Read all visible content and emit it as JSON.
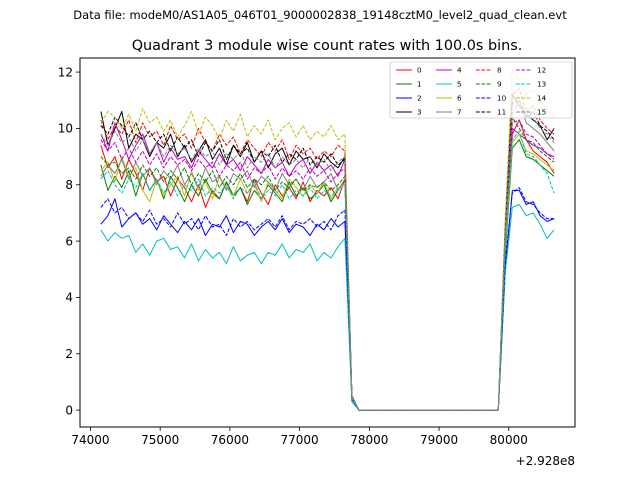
{
  "chart_data": {
    "type": "line",
    "suptitle": "Data file: modeM0/AS1A05_046T01_9000002838_19148cztM0_level2_quad_clean.evt",
    "title": "Quadrant 3 module wise count rates with 100.0s bins.",
    "xlabel": "",
    "ylabel": "",
    "x_offset_label": "+2.928e8",
    "xlim": [
      73850,
      80950
    ],
    "ylim": [
      -0.6,
      12.5
    ],
    "x_ticks": [
      74000,
      75000,
      76000,
      77000,
      78000,
      79000,
      80000
    ],
    "x_tick_labels": [
      "74000",
      "75000",
      "76000",
      "77000",
      "78000",
      "79000",
      "80000"
    ],
    "y_ticks": [
      0,
      2,
      4,
      6,
      8,
      10,
      12
    ],
    "y_tick_labels": [
      "0",
      "2",
      "4",
      "6",
      "8",
      "10",
      "12"
    ],
    "x": [
      74150,
      74250,
      74350,
      74450,
      74550,
      74650,
      74750,
      74850,
      74950,
      75050,
      75150,
      75250,
      75350,
      75450,
      75550,
      75650,
      75750,
      75850,
      75950,
      76050,
      76150,
      76250,
      76350,
      76450,
      76550,
      76650,
      76750,
      76850,
      76950,
      77050,
      77150,
      77250,
      77350,
      77450,
      77550,
      77650,
      77750,
      77850,
      77950,
      78050,
      78150,
      78250,
      78350,
      78450,
      78550,
      78650,
      78750,
      78850,
      78950,
      79050,
      79150,
      79250,
      79350,
      79450,
      79550,
      79650,
      79750,
      79850,
      79950,
      80050,
      80150,
      80250,
      80350,
      80450,
      80550,
      80650
    ],
    "legend": {
      "location": "upper right",
      "columns": 4
    },
    "series": [
      {
        "name": "0",
        "color": "#ff0000",
        "style": "solid",
        "values": [
          9.4,
          8.6,
          9.0,
          8.2,
          8.9,
          8.4,
          7.8,
          8.6,
          8.1,
          8.3,
          7.6,
          8.2,
          7.9,
          7.4,
          8.0,
          7.2,
          7.8,
          7.5,
          8.1,
          7.6,
          7.9,
          7.4,
          8.2,
          7.7,
          7.3,
          8.0,
          7.6,
          7.9,
          7.5,
          8.1,
          7.4,
          7.8,
          7.6,
          7.9,
          7.5,
          8.2,
          0.4,
          0,
          0,
          0,
          0,
          0,
          0,
          0,
          0,
          0,
          0,
          0,
          0,
          0,
          0,
          0,
          0,
          0,
          0,
          0,
          0,
          0,
          5.8,
          9.8,
          10.3,
          9.6,
          9.2,
          9.0,
          8.8,
          8.4
        ]
      },
      {
        "name": "1",
        "color": "#008000",
        "style": "solid",
        "values": [
          8.7,
          7.8,
          8.3,
          7.9,
          8.5,
          7.6,
          8.4,
          7.8,
          8.2,
          7.5,
          8.3,
          7.9,
          7.4,
          8.0,
          7.6,
          8.2,
          7.7,
          7.5,
          8.1,
          7.6,
          7.9,
          7.3,
          7.8,
          7.5,
          8.0,
          7.7,
          7.4,
          8.1,
          7.6,
          7.9,
          7.5,
          7.7,
          8.0,
          7.4,
          7.8,
          8.2,
          0.5,
          0,
          0,
          0,
          0,
          0,
          0,
          0,
          0,
          0,
          0,
          0,
          0,
          0,
          0,
          0,
          0,
          0,
          0,
          0,
          0,
          0,
          5.5,
          9.3,
          9.6,
          9.0,
          8.9,
          8.7,
          8.5,
          8.3
        ]
      },
      {
        "name": "2",
        "color": "#0000ff",
        "style": "solid",
        "values": [
          6.6,
          6.9,
          7.5,
          6.5,
          6.8,
          7.0,
          6.6,
          6.8,
          6.4,
          6.9,
          6.6,
          6.3,
          6.7,
          6.4,
          6.8,
          6.2,
          6.6,
          6.5,
          6.9,
          6.3,
          6.7,
          6.6,
          6.2,
          6.5,
          6.7,
          6.4,
          6.8,
          6.3,
          6.6,
          6.5,
          6.2,
          6.6,
          6.4,
          6.8,
          6.5,
          6.7,
          0.3,
          0,
          0,
          0,
          0,
          0,
          0,
          0,
          0,
          0,
          0,
          0,
          0,
          0,
          0,
          0,
          0,
          0,
          0,
          0,
          0,
          0,
          5.0,
          7.8,
          7.8,
          7.3,
          7.4,
          6.9,
          6.7,
          6.8
        ]
      },
      {
        "name": "3",
        "color": "#000000",
        "style": "solid",
        "values": [
          10.6,
          9.4,
          10.0,
          10.6,
          9.3,
          9.8,
          9.6,
          9.0,
          9.5,
          9.3,
          9.8,
          9.0,
          9.4,
          8.8,
          9.2,
          9.6,
          8.9,
          9.3,
          8.7,
          9.4,
          9.0,
          9.5,
          8.8,
          9.2,
          8.6,
          9.1,
          9.3,
          8.7,
          9.2,
          8.9,
          9.0,
          8.6,
          9.1,
          8.8,
          8.6,
          9.0,
          0.4,
          0,
          0,
          0,
          0,
          0,
          0,
          0,
          0,
          0,
          0,
          0,
          0,
          0,
          0,
          0,
          0,
          0,
          0,
          0,
          0,
          0,
          6.5,
          11.2,
          10.8,
          10.5,
          10.3,
          10.1,
          9.6,
          10.0
        ]
      },
      {
        "name": "4",
        "color": "#bf00bf",
        "style": "solid",
        "values": [
          9.8,
          9.2,
          10.2,
          9.6,
          8.9,
          9.4,
          9.8,
          9.1,
          9.5,
          8.8,
          9.3,
          8.9,
          9.0,
          8.6,
          9.2,
          8.9,
          8.6,
          9.1,
          8.7,
          8.9,
          8.5,
          9.0,
          8.7,
          8.4,
          8.9,
          8.6,
          8.8,
          8.3,
          8.7,
          8.9,
          8.4,
          8.8,
          8.5,
          8.7,
          8.3,
          8.9,
          0.4,
          0,
          0,
          0,
          0,
          0,
          0,
          0,
          0,
          0,
          0,
          0,
          0,
          0,
          0,
          0,
          0,
          0,
          0,
          0,
          0,
          0,
          6.0,
          10.0,
          9.8,
          9.6,
          9.4,
          9.3,
          9.1,
          9.0
        ]
      },
      {
        "name": "5",
        "color": "#00bfbf",
        "style": "solid",
        "values": [
          6.4,
          6.0,
          6.3,
          6.1,
          6.2,
          5.6,
          5.9,
          5.5,
          6.0,
          6.1,
          5.7,
          5.8,
          5.4,
          5.9,
          5.3,
          5.7,
          5.4,
          5.6,
          5.2,
          5.8,
          5.3,
          5.5,
          5.6,
          5.2,
          5.6,
          5.5,
          5.9,
          5.4,
          5.7,
          5.6,
          5.9,
          5.3,
          5.6,
          5.4,
          5.8,
          6.1,
          0.3,
          0,
          0,
          0,
          0,
          0,
          0,
          0,
          0,
          0,
          0,
          0,
          0,
          0,
          0,
          0,
          0,
          0,
          0,
          0,
          0,
          0,
          4.9,
          7.2,
          7.3,
          6.9,
          7.0,
          6.6,
          6.1,
          6.4
        ]
      },
      {
        "name": "6",
        "color": "#bfbf00",
        "style": "solid",
        "values": [
          8.5,
          8.8,
          8.1,
          9.0,
          8.3,
          8.6,
          7.8,
          7.4,
          8.2,
          7.6,
          8.0,
          8.3,
          7.6,
          8.5,
          7.8,
          8.1,
          7.5,
          8.3,
          7.9,
          7.6,
          8.2,
          7.7,
          8.0,
          7.4,
          8.1,
          7.8,
          7.5,
          8.2,
          7.9,
          7.6,
          8.0,
          7.7,
          8.1,
          7.5,
          7.9,
          8.0,
          0.4,
          0,
          0,
          0,
          0,
          0,
          0,
          0,
          0,
          0,
          0,
          0,
          0,
          0,
          0,
          0,
          0,
          0,
          0,
          0,
          0,
          0,
          5.7,
          9.5,
          9.8,
          9.2,
          9.1,
          8.9,
          8.7,
          8.5
        ]
      },
      {
        "name": "7",
        "color": "#808080",
        "style": "solid",
        "values": [
          8.3,
          8.7,
          8.4,
          8.9,
          8.2,
          8.8,
          8.3,
          8.6,
          8.0,
          8.5,
          8.2,
          8.7,
          8.0,
          8.4,
          7.9,
          8.6,
          8.1,
          8.3,
          7.8,
          8.4,
          8.2,
          8.5,
          7.9,
          8.3,
          8.1,
          7.8,
          8.4,
          8.0,
          8.2,
          7.8,
          8.3,
          7.9,
          8.1,
          8.4,
          7.8,
          8.2,
          0.4,
          0,
          0,
          0,
          0,
          0,
          0,
          0,
          0,
          0,
          0,
          0,
          0,
          0,
          0,
          0,
          0,
          0,
          0,
          0,
          0,
          0,
          6.0,
          10.5,
          11.0,
          10.2,
          10.0,
          9.8,
          9.5,
          9.2
        ]
      },
      {
        "name": "8",
        "color": "#ff0000",
        "style": "dashed",
        "values": [
          10.3,
          9.6,
          10.1,
          9.8,
          10.3,
          9.5,
          10.2,
          9.7,
          9.9,
          9.4,
          10.1,
          9.6,
          9.8,
          9.3,
          10.0,
          9.5,
          9.2,
          9.8,
          9.4,
          9.7,
          9.1,
          9.6,
          9.3,
          9.0,
          9.5,
          9.2,
          9.6,
          8.9,
          9.4,
          9.1,
          9.3,
          8.9,
          9.2,
          9.0,
          9.4,
          9.2,
          0.5,
          0,
          0,
          0,
          0,
          0,
          0,
          0,
          0,
          0,
          0,
          0,
          0,
          0,
          0,
          0,
          0,
          0,
          0,
          0,
          0,
          0,
          6.6,
          11.2,
          11.4,
          10.6,
          10.8,
          10.3,
          10.0,
          9.8
        ]
      },
      {
        "name": "9",
        "color": "#008000",
        "style": "dashed",
        "values": [
          9.0,
          8.7,
          8.8,
          8.4,
          8.6,
          8.2,
          8.7,
          8.3,
          8.6,
          8.1,
          8.5,
          8.2,
          8.6,
          8.0,
          8.4,
          8.1,
          8.5,
          7.9,
          8.3,
          8.0,
          8.4,
          7.9,
          8.2,
          8.0,
          8.3,
          7.8,
          8.1,
          7.9,
          8.2,
          7.8,
          8.0,
          7.9,
          8.1,
          7.8,
          8.0,
          8.3,
          0.5,
          0,
          0,
          0,
          0,
          0,
          0,
          0,
          0,
          0,
          0,
          0,
          0,
          0,
          0,
          0,
          0,
          0,
          0,
          0,
          0,
          0,
          6.2,
          10.4,
          10.0,
          9.6,
          9.5,
          9.2,
          9.0,
          8.8
        ]
      },
      {
        "name": "10",
        "color": "#0000ff",
        "style": "dashed",
        "values": [
          7.2,
          7.5,
          7.0,
          7.2,
          6.8,
          7.0,
          6.7,
          7.1,
          6.6,
          6.8,
          6.5,
          7.0,
          6.6,
          6.8,
          6.4,
          6.9,
          6.5,
          6.6,
          6.2,
          6.8,
          6.5,
          6.7,
          6.4,
          6.6,
          6.8,
          6.5,
          6.9,
          6.4,
          6.7,
          6.6,
          6.8,
          6.5,
          6.7,
          6.4,
          6.9,
          7.1,
          0.4,
          0,
          0,
          0,
          0,
          0,
          0,
          0,
          0,
          0,
          0,
          0,
          0,
          0,
          0,
          0,
          0,
          0,
          0,
          0,
          0,
          0,
          5.3,
          7.7,
          7.9,
          7.4,
          7.3,
          7.0,
          6.8,
          6.8
        ]
      },
      {
        "name": "11",
        "color": "#000000",
        "style": "dashed",
        "values": [
          10.1,
          9.8,
          10.4,
          10.1,
          9.7,
          10.2,
          9.6,
          9.9,
          9.5,
          9.8,
          9.2,
          9.7,
          9.3,
          9.6,
          9.0,
          9.5,
          9.2,
          9.6,
          8.9,
          9.4,
          9.1,
          9.3,
          8.8,
          9.2,
          9.0,
          9.4,
          8.8,
          9.1,
          8.9,
          9.3,
          8.7,
          9.0,
          8.8,
          9.1,
          8.7,
          8.9,
          0.5,
          0,
          0,
          0,
          0,
          0,
          0,
          0,
          0,
          0,
          0,
          0,
          0,
          0,
          0,
          0,
          0,
          0,
          0,
          0,
          0,
          0,
          6.6,
          10.9,
          11.0,
          10.4,
          10.6,
          10.1,
          9.9,
          9.6
        ]
      },
      {
        "name": "12",
        "color": "#bf00bf",
        "style": "dashed",
        "values": [
          9.6,
          9.2,
          9.5,
          8.9,
          9.3,
          8.8,
          9.2,
          8.7,
          9.1,
          8.6,
          9.0,
          8.7,
          8.9,
          8.5,
          8.9,
          8.6,
          8.8,
          8.3,
          8.7,
          8.5,
          8.8,
          8.2,
          8.6,
          8.4,
          8.7,
          8.2,
          8.6,
          8.3,
          8.5,
          8.2,
          8.6,
          8.3,
          8.5,
          8.1,
          8.4,
          8.6,
          0.5,
          0,
          0,
          0,
          0,
          0,
          0,
          0,
          0,
          0,
          0,
          0,
          0,
          0,
          0,
          0,
          0,
          0,
          0,
          0,
          0,
          0,
          6.1,
          10.2,
          10.3,
          9.8,
          9.7,
          9.4,
          9.1,
          8.9
        ]
      },
      {
        "name": "13",
        "color": "#00bfbf",
        "style": "dashed",
        "values": [
          8.2,
          8.5,
          8.0,
          7.7,
          8.2,
          7.9,
          8.4,
          7.8,
          8.2,
          7.7,
          8.1,
          7.6,
          8.0,
          7.8,
          8.2,
          7.6,
          7.9,
          7.7,
          8.0,
          7.5,
          7.9,
          7.7,
          8.1,
          7.5,
          7.8,
          7.6,
          8.0,
          7.5,
          7.8,
          7.6,
          7.9,
          7.5,
          7.8,
          7.6,
          7.8,
          8.0,
          0.4,
          0,
          0,
          0,
          0,
          0,
          0,
          0,
          0,
          0,
          0,
          0,
          0,
          0,
          0,
          0,
          0,
          0,
          0,
          0,
          0,
          0,
          5.9,
          9.6,
          9.9,
          9.1,
          9.0,
          8.7,
          8.4,
          7.7
        ]
      },
      {
        "name": "14",
        "color": "#bfbf00",
        "style": "dashed",
        "values": [
          10.2,
          10.6,
          10.4,
          10.0,
          10.5,
          9.9,
          10.7,
          10.2,
          10.4,
          9.9,
          10.3,
          9.7,
          10.1,
          10.6,
          9.8,
          10.4,
          10.1,
          9.6,
          10.3,
          9.9,
          10.5,
          9.7,
          10.1,
          9.8,
          10.3,
          9.6,
          10.0,
          10.2,
          9.7,
          10.1,
          9.6,
          9.9,
          9.7,
          10.1,
          9.6,
          9.8,
          0.5,
          0,
          0,
          0,
          0,
          0,
          0,
          0,
          0,
          0,
          0,
          0,
          0,
          0,
          0,
          0,
          0,
          0,
          0,
          0,
          0,
          0,
          6.9,
          12.1,
          11.7,
          11.2,
          11.4,
          11.0,
          10.6,
          10.4
        ]
      },
      {
        "name": "15",
        "color": "#808080",
        "style": "dashed",
        "values": [
          9.8,
          9.4,
          9.9,
          9.5,
          9.7,
          9.2,
          9.6,
          9.1,
          9.5,
          9.0,
          9.4,
          9.1,
          9.3,
          8.9,
          9.3,
          9.0,
          9.2,
          8.7,
          9.1,
          8.9,
          9.2,
          8.6,
          9.0,
          8.8,
          9.1,
          8.6,
          9.0,
          8.7,
          8.9,
          8.6,
          9.0,
          8.7,
          8.9,
          8.5,
          8.8,
          9.0,
          0.5,
          0,
          0,
          0,
          0,
          0,
          0,
          0,
          0,
          0,
          0,
          0,
          0,
          0,
          0,
          0,
          0,
          0,
          0,
          0,
          0,
          0,
          6.4,
          10.8,
          11.0,
          10.5,
          10.4,
          10.0,
          9.8,
          9.5
        ]
      }
    ]
  }
}
